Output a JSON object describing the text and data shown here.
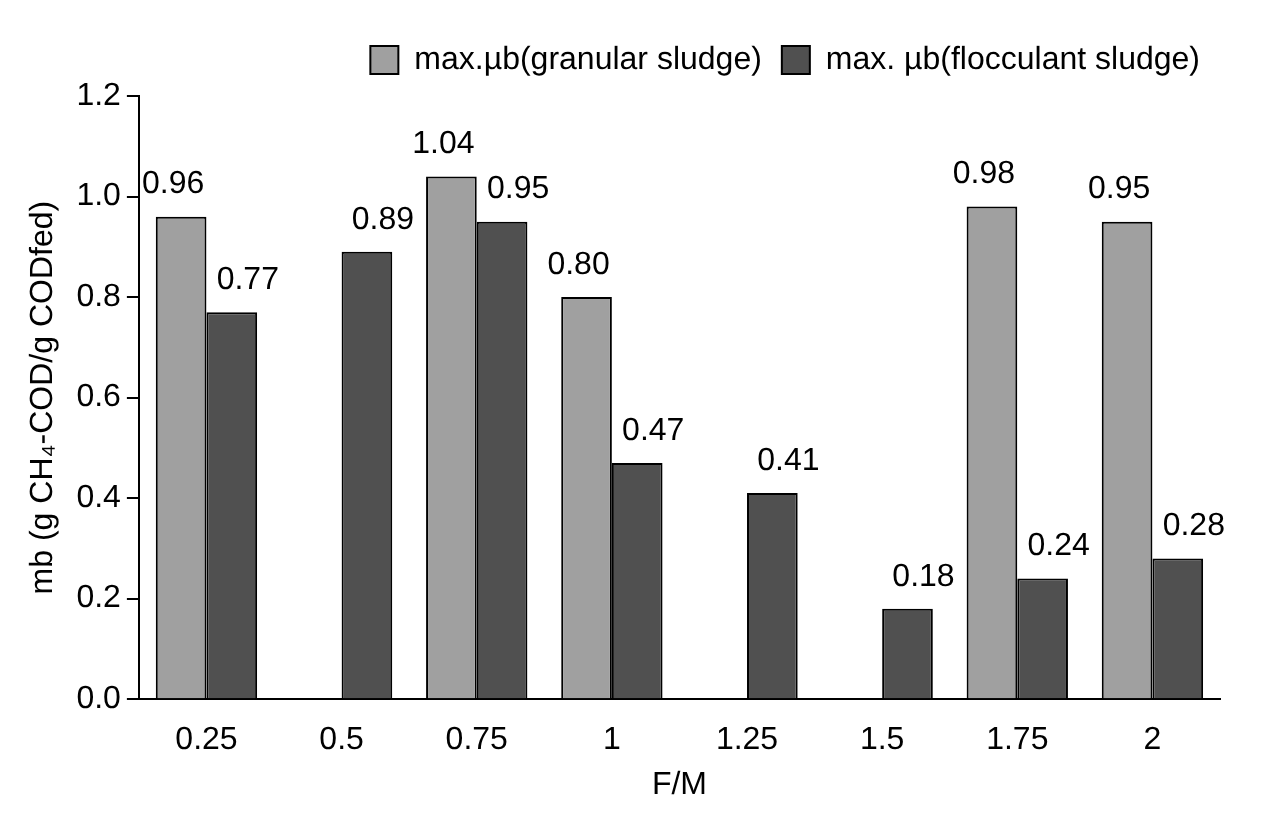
{
  "chart_data": {
    "type": "bar",
    "xlabel": "F/M",
    "ylabel": "mb (g CH₄-COD/g CODfed)",
    "categories": [
      "0.25",
      "0.5",
      "0.75",
      "1",
      "1.25",
      "1.5",
      "1.75",
      "2"
    ],
    "series": [
      {
        "name": "max.µb(granular sludge)",
        "color": "#a0a0a0",
        "values": [
          0.96,
          null,
          1.04,
          0.8,
          null,
          null,
          0.98,
          0.95
        ],
        "value_labels": [
          "0.96",
          null,
          "1.04",
          "0.80",
          null,
          null,
          "0.98",
          "0.95"
        ]
      },
      {
        "name": "max. µb(flocculant sludge)",
        "color": "#505050",
        "values": [
          0.77,
          0.89,
          0.95,
          0.47,
          0.41,
          0.18,
          0.24,
          0.28
        ],
        "value_labels": [
          "0.77",
          "0.89",
          "0.95",
          "0.47",
          "0.41",
          "0.18",
          "0.24",
          "0.28"
        ]
      }
    ],
    "ylim": [
      0,
      1.2
    ],
    "yticks": [
      "0.0",
      "0.2",
      "0.4",
      "0.6",
      "0.8",
      "1.0",
      "1.2"
    ],
    "grid": false,
    "legend": "top"
  }
}
